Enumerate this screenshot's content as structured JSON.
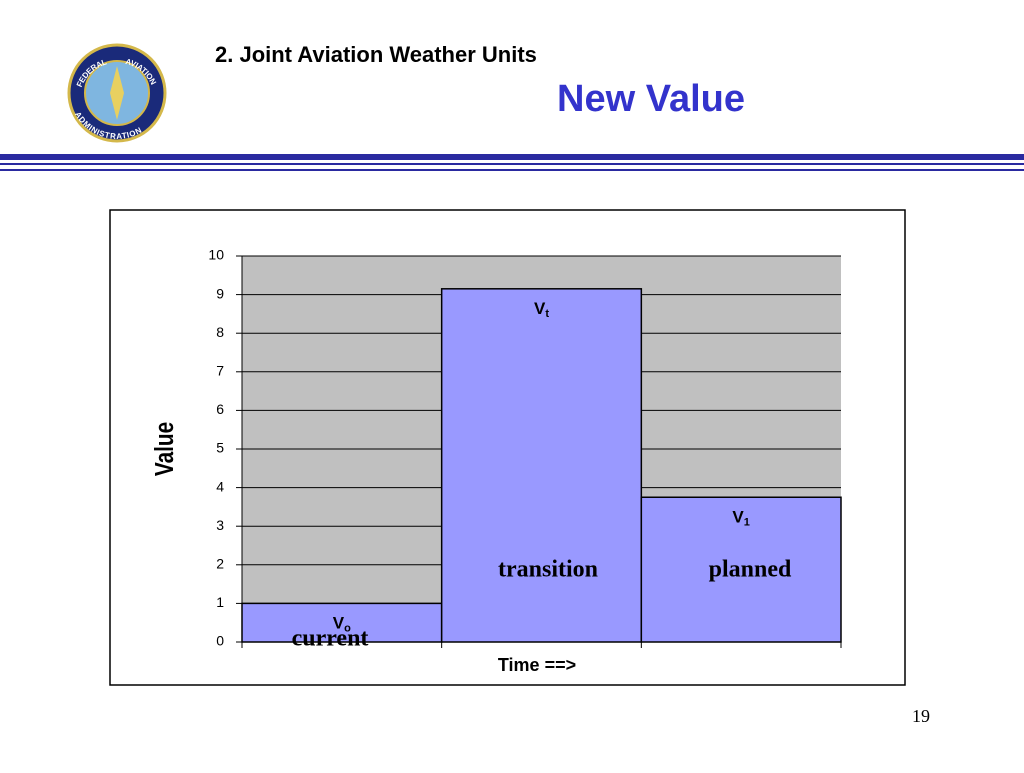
{
  "header": {
    "section": "2.   Joint Aviation Weather Units",
    "title": "New Value",
    "page_number": "19"
  },
  "logo": {
    "top_left": "FEDERAL",
    "top_right": "AVIATION",
    "bottom": "ADMINISTRATION"
  },
  "chart_data": {
    "type": "bar",
    "categories": [
      null,
      null,
      null
    ],
    "values": [
      1,
      9.15,
      3.75
    ],
    "color": "#9999ff",
    "bar_labels": [
      {
        "main": "V",
        "sub": "o"
      },
      {
        "main": "V",
        "sub": "t"
      },
      {
        "main": "V",
        "sub": "1"
      }
    ],
    "annotations": [
      "current",
      "transition",
      "planned"
    ],
    "xlabel": "Time ==>",
    "ylabel": "Value",
    "ylim": [
      0,
      10
    ],
    "yticks": [
      0,
      1,
      2,
      3,
      4,
      5,
      6,
      7,
      8,
      9,
      10
    ],
    "grid": true
  }
}
